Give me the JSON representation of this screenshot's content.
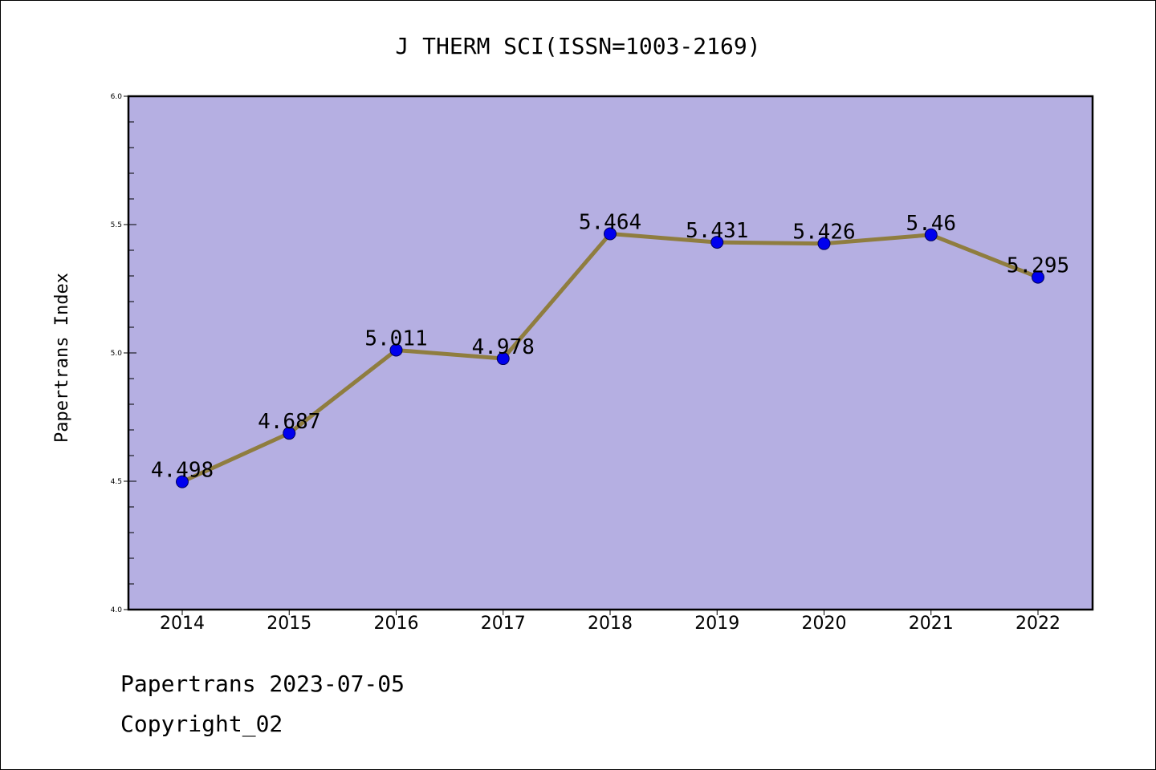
{
  "chart_data": {
    "type": "line",
    "title": "J THERM SCI(ISSN=1003-2169)",
    "xlabel": "",
    "ylabel": "Papertrans Index",
    "categories": [
      "2014",
      "2015",
      "2016",
      "2017",
      "2018",
      "2019",
      "2020",
      "2021",
      "2022"
    ],
    "values": [
      4.498,
      4.687,
      5.011,
      4.978,
      5.464,
      5.431,
      5.426,
      5.46,
      5.295
    ],
    "data_labels": [
      "4.498",
      "4.687",
      "5.011",
      "4.978",
      "5.464",
      "5.431",
      "5.426",
      "5.46",
      "5.295"
    ],
    "ylim": [
      4.0,
      6.0
    ],
    "yticks": [
      "4.0",
      "4.5",
      "5.0",
      "5.5",
      "6.0"
    ],
    "yticks_minor_step": 0.1,
    "grid": false,
    "legend": "none",
    "colors": {
      "plot_background": "#b5afe2",
      "line": "#8f7d3f",
      "marker_fill": "#0000ee",
      "marker_edge": "#00005a",
      "axis": "#000000"
    }
  },
  "footer": {
    "date_line": "Papertrans 2023-07-05",
    "copyright_line": "Copyright_02"
  }
}
